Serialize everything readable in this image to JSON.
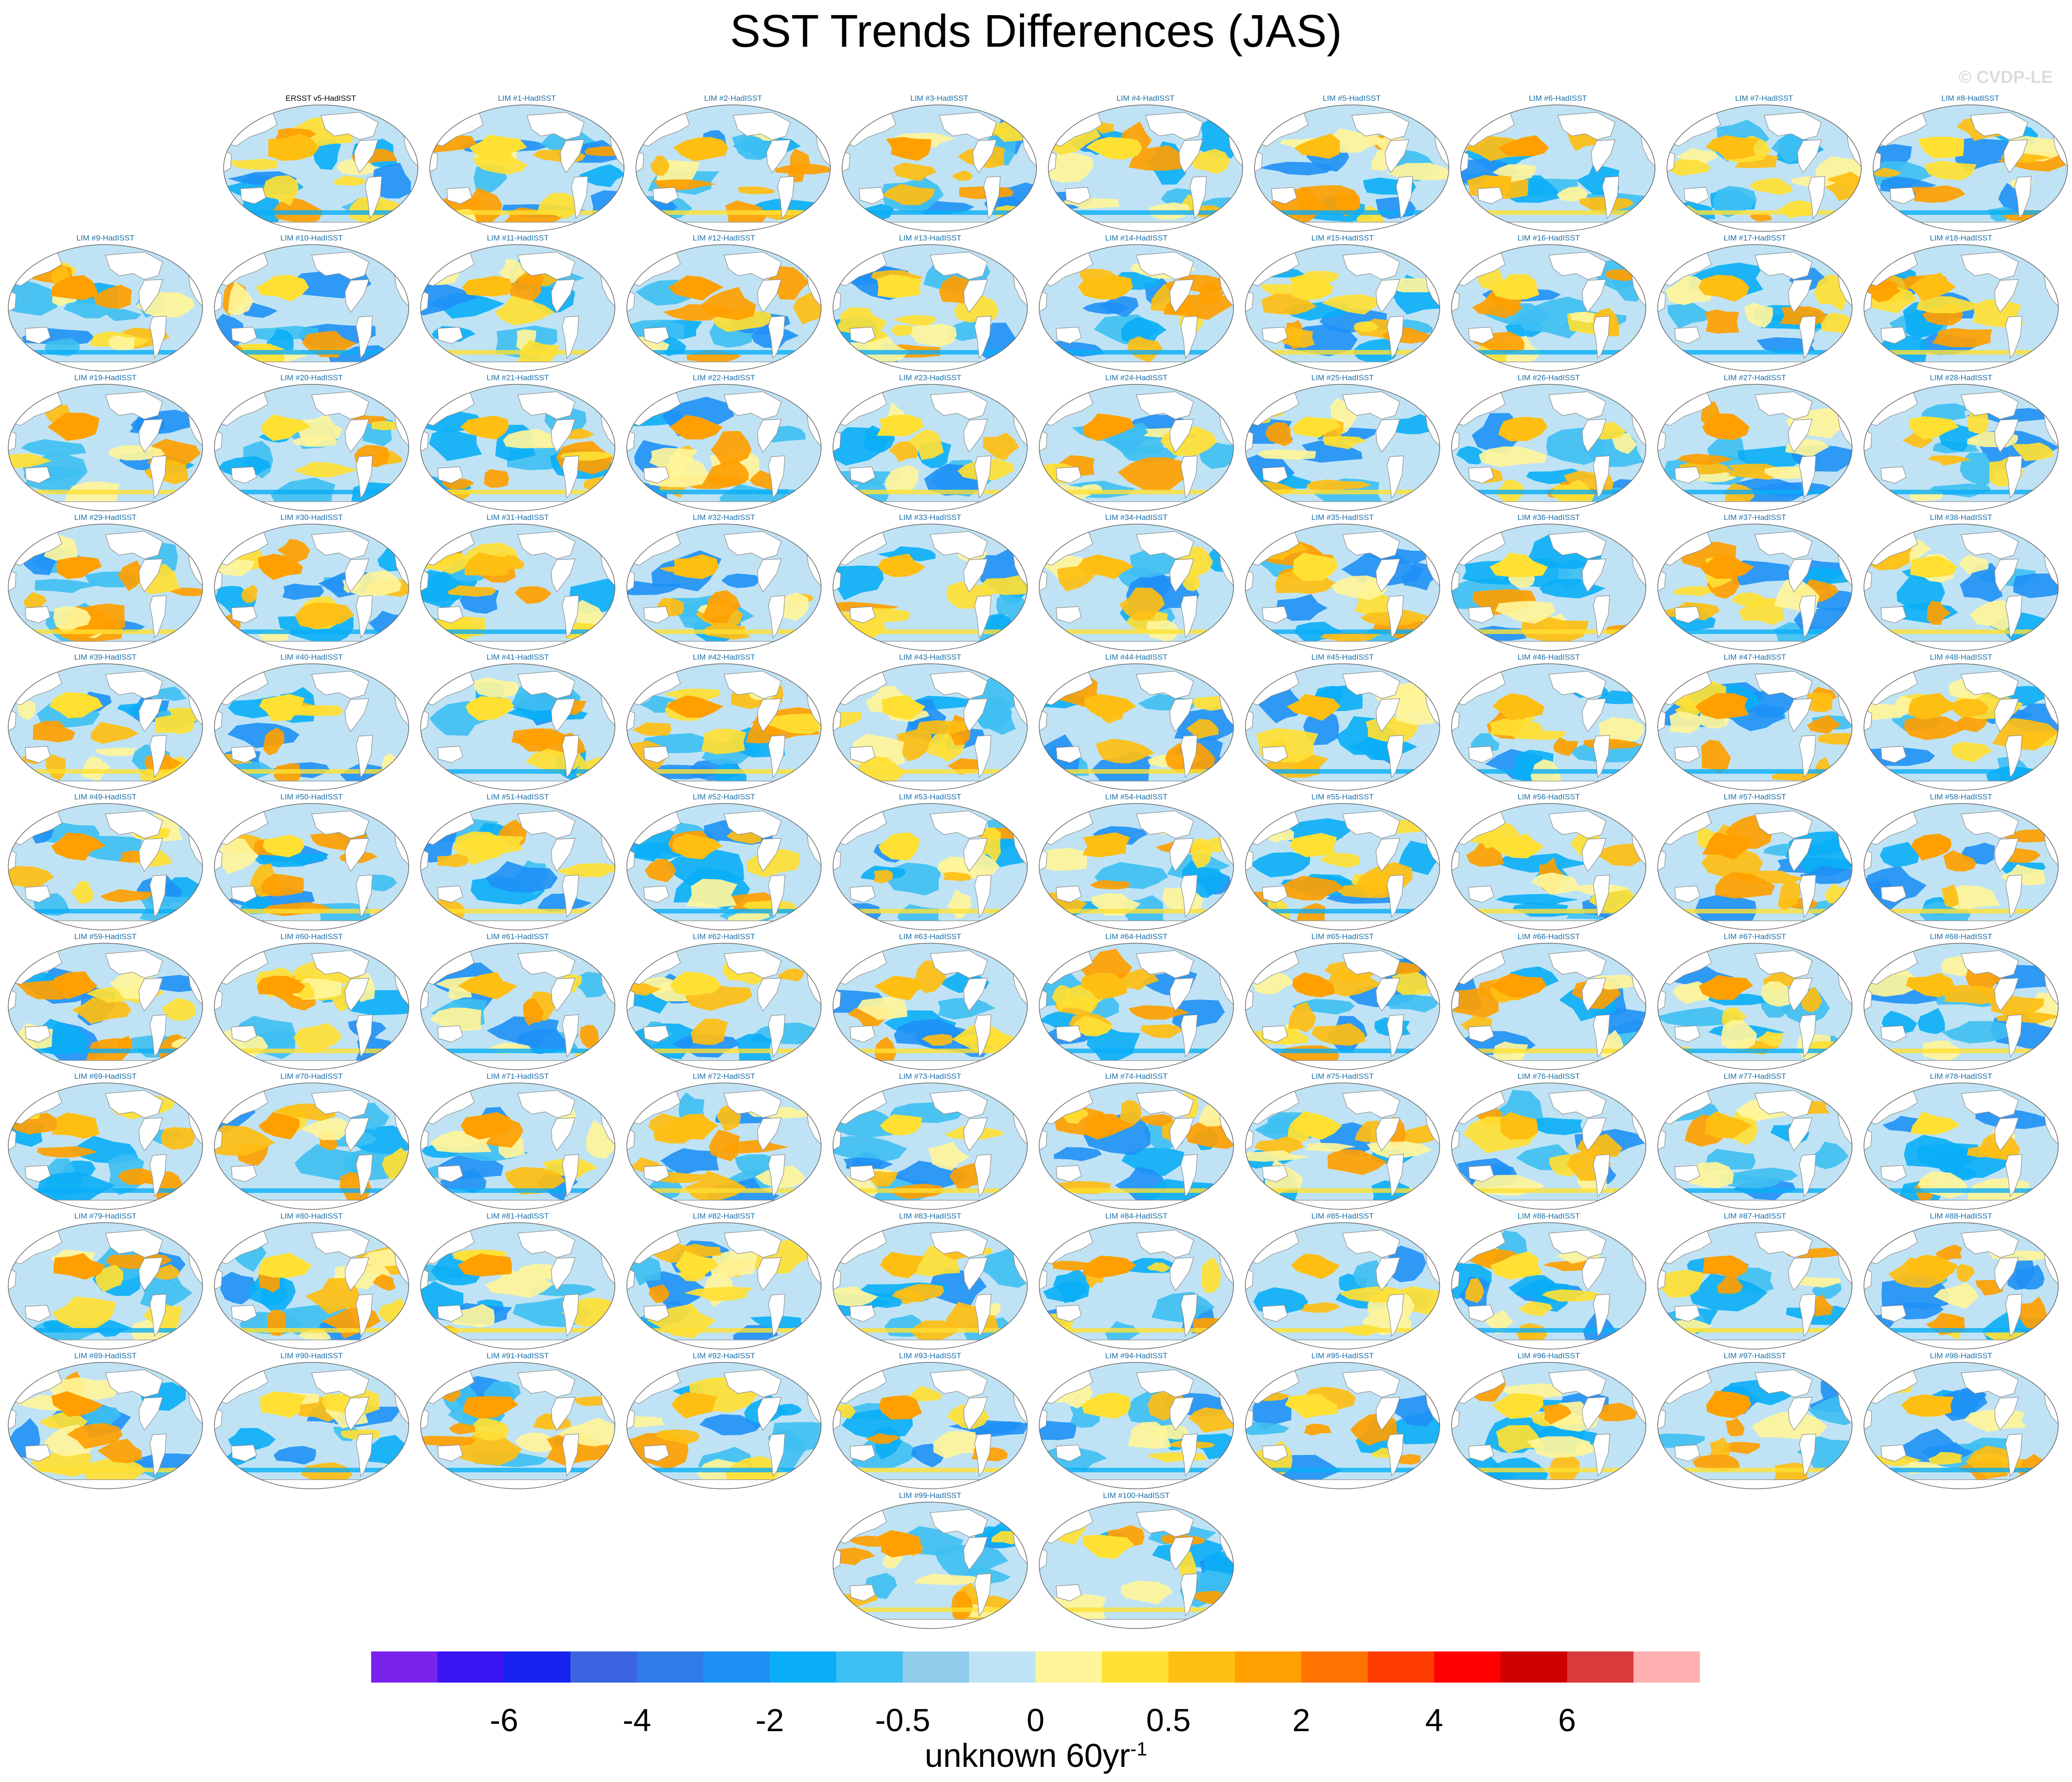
{
  "title": "SST Trends Differences (JAS)",
  "watermark": "© CVDP-LE",
  "observed_panel": {
    "label": "ERSST v5-HadISST"
  },
  "member_label_prefix": "LIM #",
  "member_label_suffix": "-HadISST",
  "member_count": 100,
  "colorbar": {
    "colors": [
      "#7b22ec",
      "#3a14f2",
      "#1623ee",
      "#3a64e0",
      "#2f7ce8",
      "#1f90f6",
      "#0aaef7",
      "#3ebff2",
      "#8fcbea",
      "#bfe3f5",
      "#fff59a",
      "#ffe033",
      "#ffbe12",
      "#ffa000",
      "#ff7400",
      "#ff3c00",
      "#ff0000",
      "#cc0000",
      "#da3a3a",
      "#ffb1b1"
    ],
    "tick_labels": [
      "-6",
      "-4",
      "-2",
      "-0.5",
      "0",
      "0.5",
      "2",
      "4",
      "6"
    ],
    "units_base": "unknown 60yr",
    "units_exponent": "-1"
  },
  "map_style": {
    "ocean_base": "#bfe3f5",
    "land": "#ffffff",
    "coast": "#8a8a8a",
    "outline": "#666666"
  }
}
